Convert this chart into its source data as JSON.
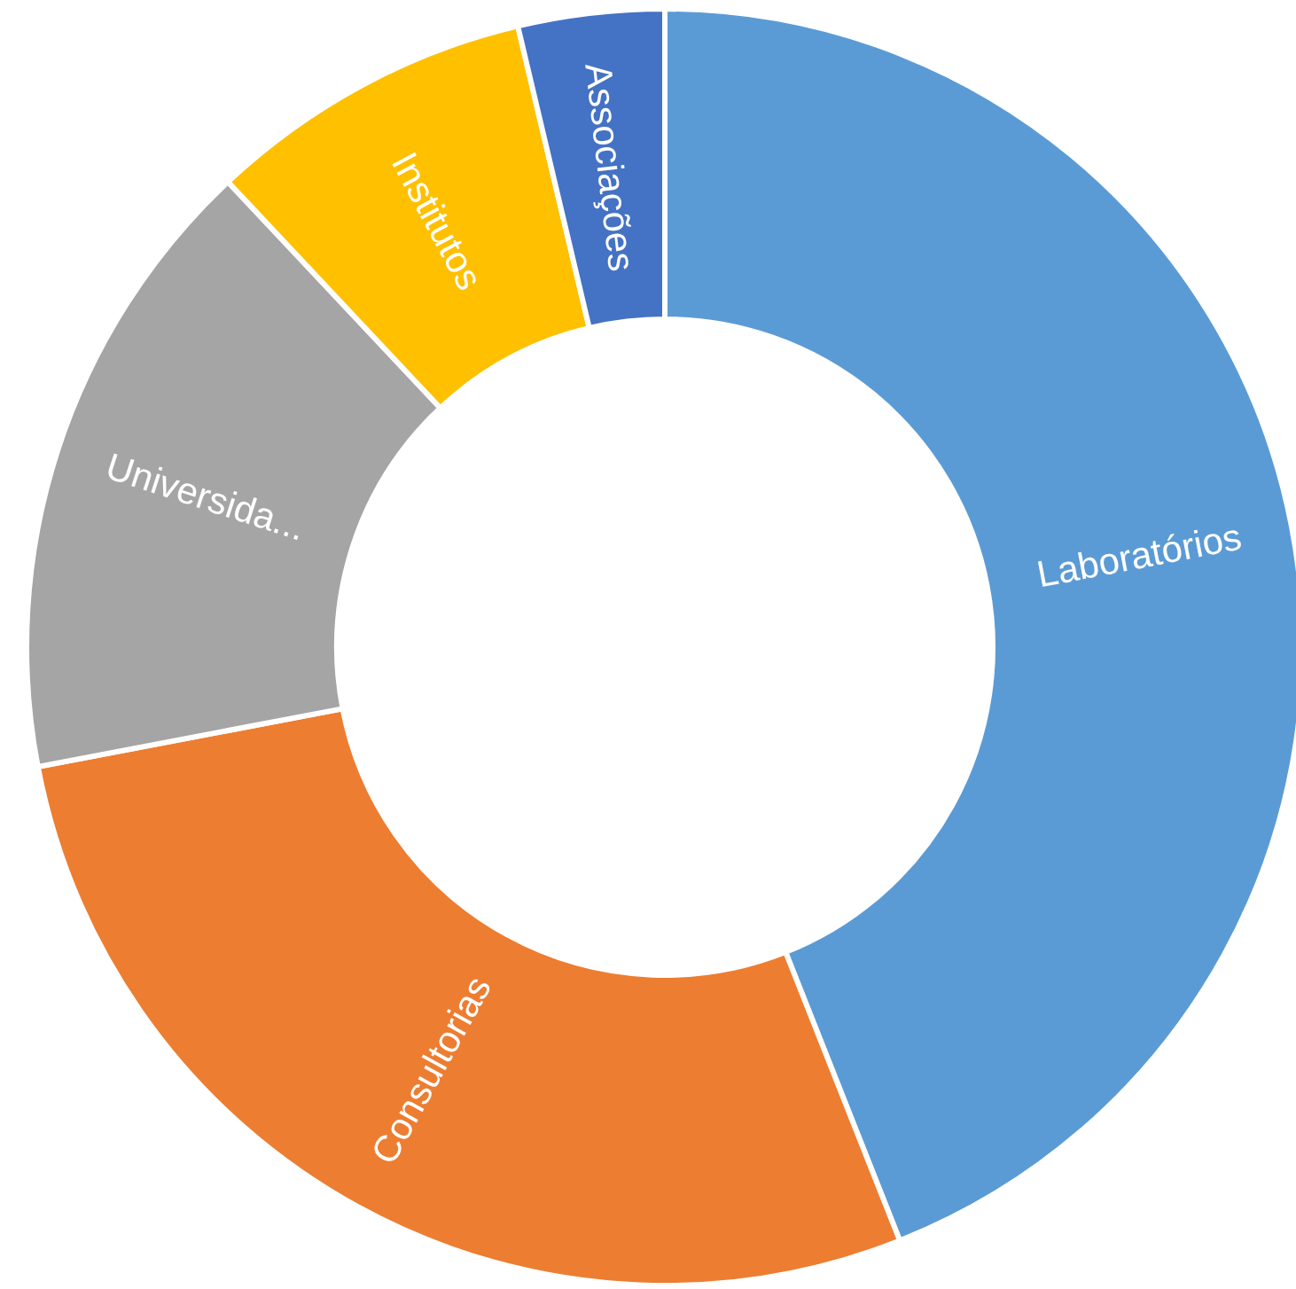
{
  "chart_data": {
    "type": "donut",
    "categories": [
      "Laboratórios",
      "Consultorias",
      "Universida...",
      "Institutos",
      "Associações"
    ],
    "values": [
      44,
      28,
      16,
      8.3,
      3.7
    ],
    "colors": [
      "#5b9bd5",
      "#ed7d31",
      "#a5a5a5",
      "#ffc000",
      "#4472c4"
    ]
  }
}
